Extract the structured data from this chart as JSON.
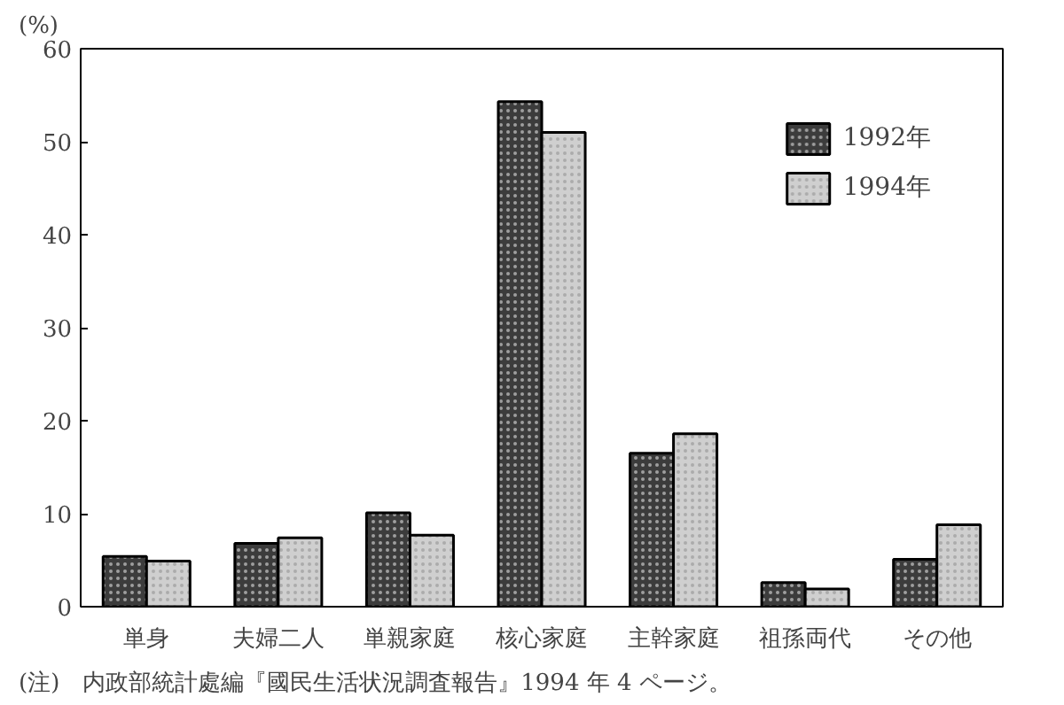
{
  "chart_data": {
    "type": "bar",
    "ylabel": "(%)",
    "categories": [
      "単身",
      "夫婦二人",
      "単親家庭",
      "核心家庭",
      "主幹家庭",
      "祖孫両代",
      "その他"
    ],
    "series": [
      {
        "name": "1992年",
        "color": "#3c3c3c",
        "values": [
          5.4,
          6.8,
          10.1,
          54.3,
          16.5,
          2.6,
          5.1
        ]
      },
      {
        "name": "1994年",
        "color": "#cfcfcf",
        "values": [
          4.9,
          7.4,
          7.7,
          51.0,
          18.6,
          1.9,
          8.8
        ]
      }
    ],
    "ylim": [
      0,
      60
    ],
    "yticks": [
      0,
      10,
      20,
      30,
      40,
      50,
      60
    ],
    "grid": false,
    "legend": "top right",
    "annotations": [
      "(注)　内政部統計處編『國民生活状況調査報告』1994 年 4 ページ。"
    ]
  }
}
